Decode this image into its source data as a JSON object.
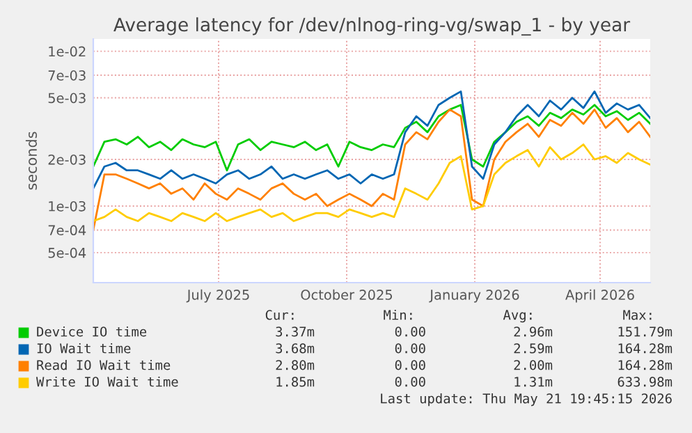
{
  "chart_data": {
    "type": "line",
    "title": "Average latency for /dev/nlnog-ring-vg/swap_1 - by year",
    "ylabel": "seconds",
    "x": [
      "2025-04-16",
      "2025-04-24",
      "2025-05-02",
      "2025-05-10",
      "2025-05-18",
      "2025-05-26",
      "2025-06-03",
      "2025-06-11",
      "2025-06-19",
      "2025-06-27",
      "2025-07-05",
      "2025-07-13",
      "2025-07-21",
      "2025-07-29",
      "2025-08-06",
      "2025-08-14",
      "2025-08-22",
      "2025-08-30",
      "2025-09-07",
      "2025-09-15",
      "2025-09-23",
      "2025-10-01",
      "2025-10-09",
      "2025-10-17",
      "2025-10-25",
      "2025-11-02",
      "2025-11-10",
      "2025-11-18",
      "2025-11-26",
      "2025-12-04",
      "2025-12-12",
      "2025-12-20",
      "2025-12-28",
      "2026-01-05",
      "2026-01-13",
      "2026-01-21",
      "2026-01-29",
      "2026-02-06",
      "2026-02-14",
      "2026-02-22",
      "2026-03-02",
      "2026-03-10",
      "2026-03-18",
      "2026-03-26",
      "2026-04-03",
      "2026-04-11",
      "2026-04-19",
      "2026-04-27",
      "2026-05-05",
      "2026-05-13",
      "2026-05-21"
    ],
    "series": [
      {
        "name": "Device IO time",
        "color": "#00cc00",
        "values": [
          0.0018,
          0.0026,
          0.0027,
          0.0025,
          0.0028,
          0.0024,
          0.0026,
          0.0023,
          0.0027,
          0.0025,
          0.0024,
          0.0026,
          0.0017,
          0.0025,
          0.0027,
          0.0023,
          0.0026,
          0.0025,
          0.0024,
          0.0026,
          0.0023,
          0.0025,
          0.0018,
          0.0026,
          0.0024,
          0.0023,
          0.0025,
          0.0024,
          0.0032,
          0.0035,
          0.003,
          0.0038,
          0.0042,
          0.0045,
          0.002,
          0.0018,
          0.0026,
          0.003,
          0.0035,
          0.0038,
          0.0033,
          0.004,
          0.0037,
          0.0042,
          0.0039,
          0.0045,
          0.0038,
          0.0041,
          0.0036,
          0.004,
          0.0034
        ]
      },
      {
        "name": "IO Wait time",
        "color": "#0066b3",
        "values": [
          0.0013,
          0.0018,
          0.0019,
          0.0017,
          0.0017,
          0.0016,
          0.0015,
          0.0017,
          0.0015,
          0.0016,
          0.0015,
          0.0014,
          0.0016,
          0.0017,
          0.0015,
          0.0016,
          0.0018,
          0.0015,
          0.0016,
          0.0015,
          0.0016,
          0.0017,
          0.0015,
          0.0016,
          0.0014,
          0.0016,
          0.0015,
          0.0016,
          0.003,
          0.0038,
          0.0033,
          0.0045,
          0.005,
          0.0055,
          0.0018,
          0.0015,
          0.0025,
          0.003,
          0.0038,
          0.0045,
          0.0038,
          0.0048,
          0.0042,
          0.005,
          0.0043,
          0.0055,
          0.004,
          0.0046,
          0.0042,
          0.0045,
          0.0037
        ]
      },
      {
        "name": "Read IO Wait time",
        "color": "#ff8000",
        "values": [
          0.0007,
          0.0016,
          0.0016,
          0.0015,
          0.0014,
          0.0013,
          0.0014,
          0.0012,
          0.0013,
          0.0011,
          0.0014,
          0.0012,
          0.0011,
          0.0013,
          0.0012,
          0.0011,
          0.0013,
          0.0014,
          0.0012,
          0.0011,
          0.0012,
          0.001,
          0.0011,
          0.0012,
          0.0011,
          0.001,
          0.0012,
          0.0011,
          0.0025,
          0.003,
          0.0027,
          0.0035,
          0.0042,
          0.0038,
          0.0011,
          0.001,
          0.002,
          0.0026,
          0.003,
          0.0034,
          0.0028,
          0.0036,
          0.0033,
          0.004,
          0.0034,
          0.0042,
          0.0032,
          0.0037,
          0.003,
          0.0035,
          0.0028
        ]
      },
      {
        "name": "Write IO Wait time",
        "color": "#ffcc00",
        "values": [
          0.0008,
          0.00085,
          0.00095,
          0.00085,
          0.0008,
          0.0009,
          0.00085,
          0.0008,
          0.0009,
          0.00085,
          0.0008,
          0.0009,
          0.0008,
          0.00085,
          0.0009,
          0.00095,
          0.00085,
          0.0009,
          0.0008,
          0.00085,
          0.0009,
          0.0009,
          0.00085,
          0.00095,
          0.0009,
          0.00085,
          0.0009,
          0.00085,
          0.0013,
          0.0012,
          0.0011,
          0.0014,
          0.0019,
          0.0021,
          0.00095,
          0.001,
          0.0016,
          0.0019,
          0.0021,
          0.0023,
          0.0018,
          0.0024,
          0.002,
          0.0022,
          0.0025,
          0.002,
          0.0021,
          0.0019,
          0.0022,
          0.002,
          0.00185
        ]
      }
    ],
    "log": "y",
    "ylim": [
      0.00032,
      0.012
    ],
    "yticks": [
      {
        "value": 0.0005,
        "label": "5e-04"
      },
      {
        "value": 0.0007,
        "label": "7e-04"
      },
      {
        "value": 0.001,
        "label": "1e-03"
      },
      {
        "value": 0.002,
        "label": "2e-03"
      },
      {
        "value": 0.005,
        "label": "5e-03"
      },
      {
        "value": 0.007,
        "label": "7e-03"
      },
      {
        "value": 0.01,
        "label": "1e-02"
      }
    ],
    "xlim": [
      "2025-04-16",
      "2026-05-21"
    ],
    "xticks": [
      {
        "value": "2025-07-15",
        "label": "July 2025"
      },
      {
        "value": "2025-10-15",
        "label": "October 2025"
      },
      {
        "value": "2026-01-15",
        "label": "January 2026"
      },
      {
        "value": "2026-04-15",
        "label": "April 2026"
      }
    ],
    "grid": true,
    "legend": "bottom",
    "line_style": "solid",
    "marker": "none",
    "annotations": [
      "Cur:",
      "Min:",
      "Avg:",
      "Max:",
      "3.37m",
      "0.00",
      "2.96m",
      "151.79m",
      "3.68m",
      "0.00",
      "2.59m",
      "164.28m",
      "2.80m",
      "0.00",
      "2.00m",
      "164.28m",
      "1.85m",
      "0.00",
      "1.31m",
      "633.98m",
      "Last update: Thu May 21 19:45:15 2026"
    ]
  }
}
